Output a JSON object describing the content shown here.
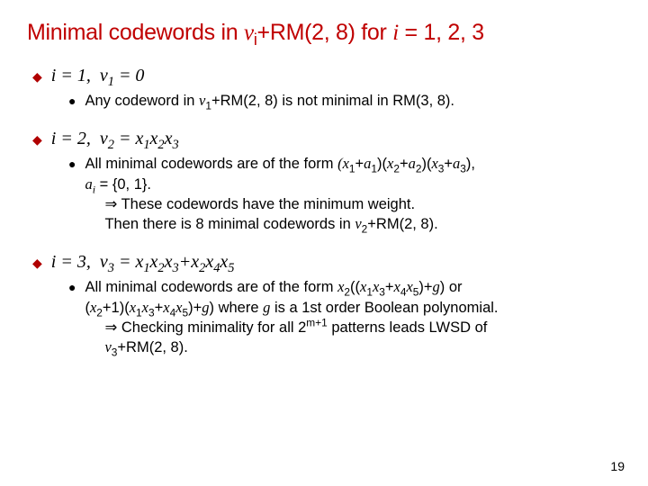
{
  "title_html": "Minimal codewords in <span class='it'>v</span><sub>i</sub>+RM(2, 8) for <span class='it'>i</span> = 1, 2, 3",
  "items": [
    {
      "head_html": "<span class='it'>i</span> = 1,&nbsp; <span class='it'>v</span><sub>1</sub> = 0",
      "subs": [
        {
          "html": "Any codeword in <span class='it'>v</span><sub>1</sub>+RM(2, 8) is not minimal in RM(3, 8)."
        }
      ]
    },
    {
      "head_html": "<span class='it'>i</span> = 2,&nbsp; <span class='it'>v</span><sub>2</sub> = <span class='it'>x</span><sub>1</sub><span class='it'>x</span><sub>2</sub><span class='it'>x</span><sub>3</sub>",
      "subs": [
        {
          "html": "All minimal codewords are of the form <span class='it'>(x</span><sub>1</sub>+<span class='it'>a</span><sub>1</sub>)(<span class='it'>x</span><sub>2</sub>+<span class='it'>a</span><sub>2</sub>)(<span class='it'>x</span><sub>3</sub>+<span class='it'>a</span><sub>3</sub>),<br><span class='it'>a<sub>i</sub></span> = {0, 1}.<br><span class='arrow-line'>⇒ These codewords have the minimum weight.</span><br><span class='arrow-line'>Then there is 8 minimal codewords in <span class='it'>v</span><sub>2</sub>+RM(2, 8).</span>"
        }
      ]
    },
    {
      "head_html": "<span class='it'>i</span> = 3,&nbsp; <span class='it'>v</span><sub>3</sub> = <span class='it'>x</span><sub>1</sub><span class='it'>x</span><sub>2</sub><span class='it'>x</span><sub>3</sub>+<span class='it'>x</span><sub>2</sub><span class='it'>x</span><sub>4</sub><span class='it'>x</span><sub>5</sub>",
      "subs": [
        {
          "html": "All minimal codewords are of the form <span class='it'>x</span><sub>2</sub>((<span class='it'>x</span><sub>1</sub><span class='it'>x</span><sub>3</sub>+<span class='it'>x</span><sub>4</sub><span class='it'>x</span><sub>5</sub>)+<span class='it'>g</span>) or<br>(<span class='it'>x</span><sub>2</sub>+1)(<span class='it'>x</span><sub>1</sub><span class='it'>x</span><sub>3</sub>+<span class='it'>x</span><sub>4</sub><span class='it'>x</span><sub>5</sub>)+<span class='it'>g</span>) where <span class='it'>g</span> is a 1st order Boolean polynomial.<br><span class='arrow-line'>⇒ Checking minimality for all 2<sup>m+1</sup> patterns leads LWSD of</span><br><span class='arrow-line'><span class='it'>v</span><sub>3</sub>+RM(2, 8).</span>"
        }
      ]
    }
  ],
  "page_number": "19",
  "colors": {
    "title": "#c00000",
    "bullet": "#b00000",
    "text": "#000000",
    "background": "#ffffff"
  }
}
